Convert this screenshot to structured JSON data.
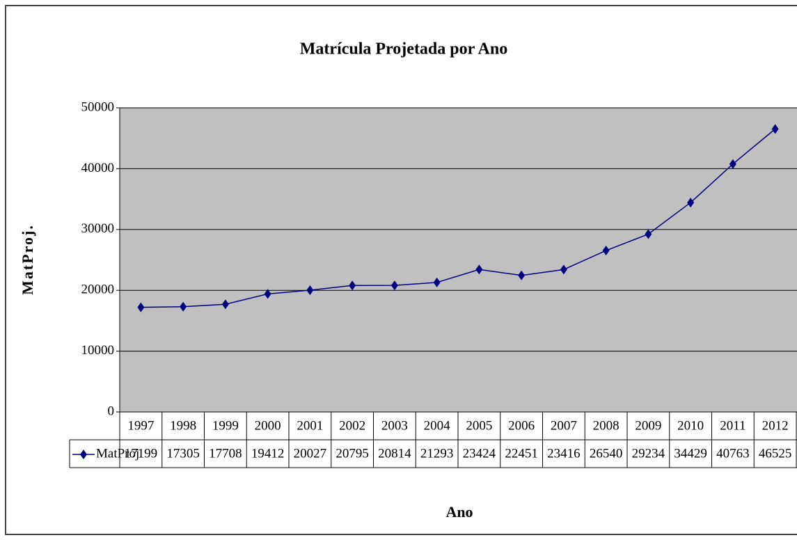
{
  "chart_data": {
    "type": "line",
    "title": "Matrícula Projetada por Ano",
    "x_label": "Ano",
    "y_label": "MatProj.",
    "categories": [
      "1997",
      "1998",
      "1999",
      "2000",
      "2001",
      "2002",
      "2003",
      "2004",
      "2005",
      "2006",
      "2007",
      "2008",
      "2009",
      "2010",
      "2011",
      "2012"
    ],
    "series": [
      {
        "name": "MatProj.",
        "color": "#000080",
        "values": [
          17199,
          17305,
          17708,
          19412,
          20027,
          20795,
          20814,
          21293,
          23424,
          22451,
          23416,
          26540,
          29234,
          34429,
          40763,
          46525
        ]
      }
    ],
    "ylim": [
      0,
      50000
    ],
    "yticks": [
      0,
      10000,
      20000,
      30000,
      40000,
      50000
    ],
    "grid": true,
    "data_table": true
  }
}
